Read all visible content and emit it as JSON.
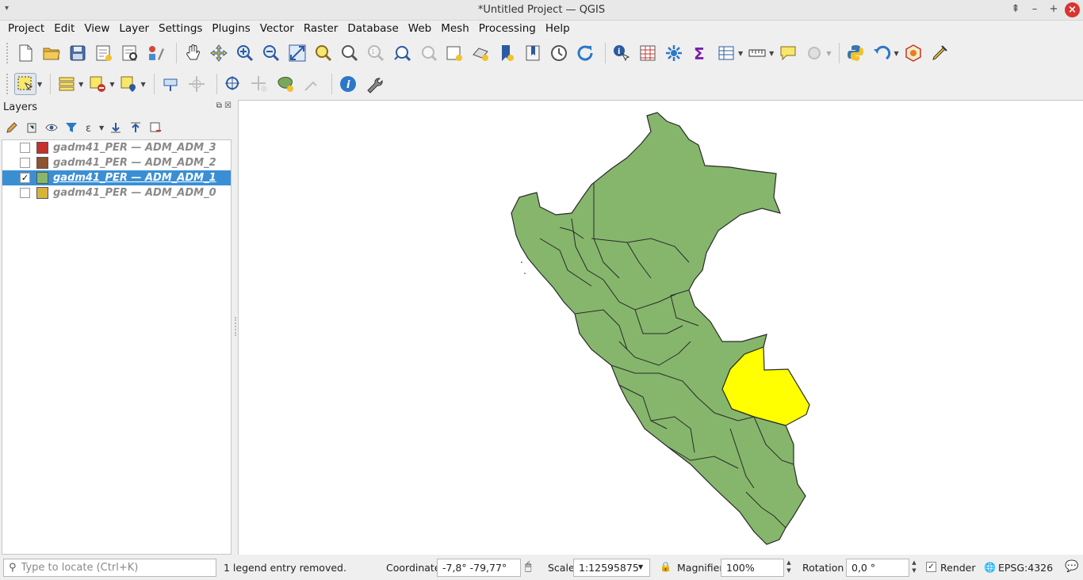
{
  "window": {
    "title": "*Untitled Project — QGIS"
  },
  "menu": [
    "Project",
    "Edit",
    "View",
    "Layer",
    "Settings",
    "Plugins",
    "Vector",
    "Raster",
    "Database",
    "Web",
    "Mesh",
    "Processing",
    "Help"
  ],
  "layers_panel": {
    "title": "Layers",
    "layers": [
      {
        "name": "gadm41_PER — ADM_ADM_3",
        "checked": false,
        "color": "#c8302c",
        "selected": false
      },
      {
        "name": "gadm41_PER — ADM_ADM_2",
        "checked": false,
        "color": "#8f532d",
        "selected": false
      },
      {
        "name": "gadm41_PER — ADM_ADM_1",
        "checked": true,
        "color": "#86b86b",
        "selected": true
      },
      {
        "name": "gadm41_PER — ADM_ADM_0",
        "checked": false,
        "color": "#d8b33a",
        "selected": false
      }
    ]
  },
  "map": {
    "fill_color": "#85b66c",
    "highlight_color": "#ffff00",
    "outline_color": "#2a2a2a"
  },
  "status": {
    "locator_placeholder": "Type to locate (Ctrl+K)",
    "message": "1 legend entry removed.",
    "coordinate_label": "Coordinate",
    "coordinate_value": "-7,8°  -79,77°",
    "scale_label": "Scale",
    "scale_value": "1:12595875",
    "magnifier_label": "Magnifier",
    "magnifier_value": "100%",
    "rotation_label": "Rotation",
    "rotation_value": "0,0 °",
    "render_label": "Render",
    "render_checked": true,
    "crs": "EPSG:4326"
  }
}
